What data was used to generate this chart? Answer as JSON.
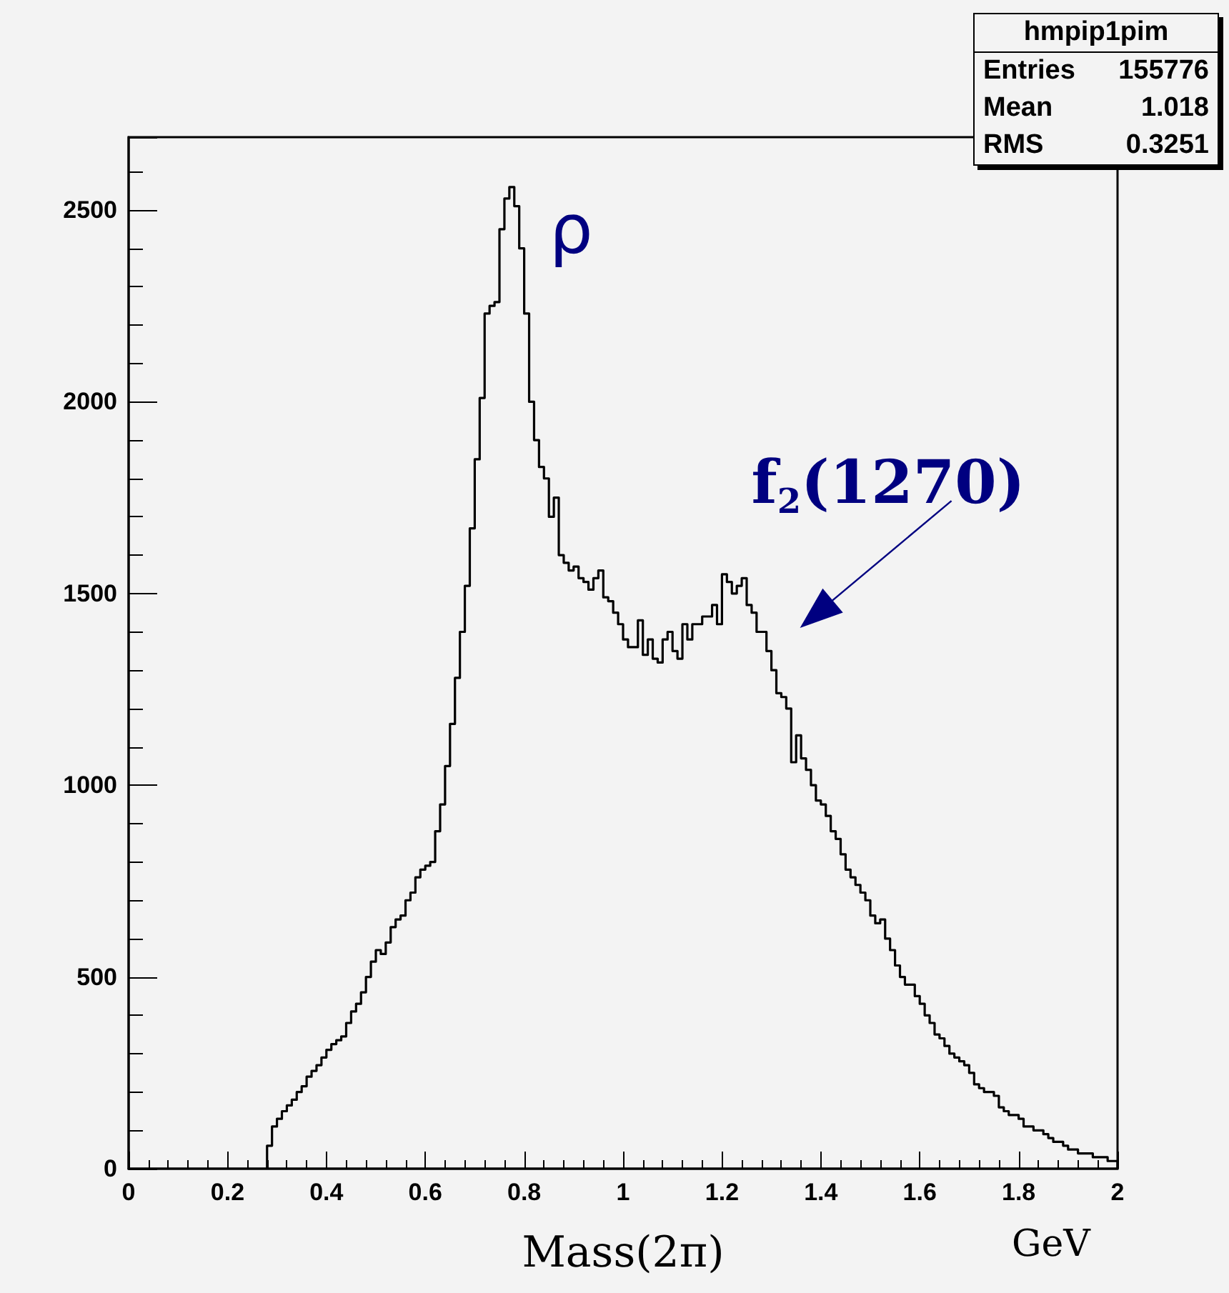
{
  "chart_data": {
    "type": "histogram",
    "xlabel": "Mass(2π)",
    "bins": [
      0.28,
      0.29,
      0.3,
      0.31,
      0.32,
      0.33,
      0.34,
      0.35,
      0.36,
      0.37,
      0.38,
      0.39,
      0.4,
      0.41,
      0.42,
      0.43,
      0.44,
      0.45,
      0.46,
      0.47,
      0.48,
      0.49,
      0.5,
      0.51,
      0.52,
      0.53,
      0.54,
      0.55,
      0.56,
      0.57,
      0.58,
      0.59,
      0.6,
      0.61,
      0.62,
      0.63,
      0.64,
      0.65,
      0.66,
      0.67,
      0.68,
      0.69,
      0.7,
      0.71,
      0.72,
      0.73,
      0.74,
      0.75,
      0.76,
      0.77,
      0.78,
      0.79,
      0.8,
      0.81,
      0.82,
      0.83,
      0.84,
      0.85,
      0.86,
      0.87,
      0.88,
      0.89,
      0.9,
      0.91,
      0.92,
      0.93,
      0.94,
      0.95,
      0.96,
      0.97,
      0.98,
      0.99,
      1.0,
      1.01,
      1.02,
      1.03,
      1.04,
      1.05,
      1.06,
      1.07,
      1.08,
      1.09,
      1.1,
      1.11,
      1.12,
      1.13,
      1.14,
      1.15,
      1.16,
      1.17,
      1.18,
      1.19,
      1.2,
      1.21,
      1.22,
      1.23,
      1.24,
      1.25,
      1.26,
      1.27,
      1.28,
      1.29,
      1.3,
      1.31,
      1.32,
      1.33,
      1.34,
      1.35,
      1.36,
      1.37,
      1.38,
      1.39,
      1.4,
      1.41,
      1.42,
      1.43,
      1.44,
      1.45,
      1.46,
      1.47,
      1.48,
      1.49,
      1.5,
      1.51,
      1.52,
      1.53,
      1.54,
      1.55,
      1.56,
      1.57,
      1.58,
      1.59,
      1.6,
      1.61,
      1.62,
      1.63,
      1.64,
      1.65,
      1.66,
      1.67,
      1.68,
      1.69,
      1.7,
      1.71,
      1.72,
      1.73,
      1.74,
      1.75,
      1.76,
      1.77,
      1.78,
      1.79,
      1.8,
      1.81,
      1.82,
      1.83,
      1.84,
      1.85,
      1.86,
      1.87,
      1.88,
      1.89,
      1.9,
      1.91,
      1.92,
      1.93,
      1.94,
      1.95,
      1.96,
      1.97,
      1.98,
      1.99,
      2.0
    ],
    "values": [
      60,
      110,
      130,
      150,
      165,
      180,
      200,
      215,
      240,
      255,
      270,
      290,
      310,
      325,
      335,
      345,
      380,
      410,
      430,
      460,
      500,
      540,
      570,
      560,
      590,
      630,
      650,
      660,
      700,
      720,
      760,
      780,
      790,
      800,
      880,
      950,
      1050,
      1160,
      1280,
      1400,
      1520,
      1670,
      1850,
      2010,
      2230,
      2250,
      2260,
      2450,
      2530,
      2560,
      2510,
      2400,
      2230,
      2000,
      1900,
      1830,
      1800,
      1700,
      1750,
      1600,
      1580,
      1560,
      1570,
      1540,
      1530,
      1510,
      1540,
      1560,
      1490,
      1480,
      1450,
      1420,
      1380,
      1360,
      1360,
      1430,
      1340,
      1380,
      1330,
      1320,
      1380,
      1400,
      1350,
      1330,
      1420,
      1380,
      1420,
      1420,
      1440,
      1440,
      1470,
      1420,
      1550,
      1530,
      1500,
      1520,
      1540,
      1470,
      1450,
      1400,
      1400,
      1350,
      1300,
      1240,
      1230,
      1200,
      1060,
      1130,
      1070,
      1040,
      1000,
      960,
      950,
      920,
      880,
      860,
      820,
      780,
      760,
      740,
      720,
      700,
      660,
      640,
      650,
      600,
      570,
      530,
      500,
      480,
      480,
      450,
      430,
      400,
      380,
      350,
      340,
      320,
      300,
      290,
      280,
      270,
      250,
      220,
      210,
      200,
      200,
      190,
      160,
      150,
      140,
      140,
      130,
      110,
      110,
      100,
      100,
      90,
      80,
      70,
      70,
      60,
      50,
      50,
      40,
      40,
      40,
      30,
      30,
      30,
      20,
      20
    ],
    "color": "#000000",
    "xlim": [
      0,
      2
    ],
    "xticks": [
      0,
      0.2,
      0.4,
      0.6,
      0.8,
      1,
      1.2,
      1.4,
      1.6,
      1.8,
      2
    ],
    "ylim": [
      0,
      2690
    ],
    "yticks": [
      0,
      500,
      1000,
      1500,
      2000,
      2500
    ],
    "grid": false,
    "annotations": [
      {
        "text": "ρ",
        "x": 0.77,
        "y": 2560
      },
      "f$_{2}$(1270)",
      "GeV",
      "hmpip1pim",
      "Entries 155776",
      "Mean 1.018",
      "RMS 0.3251"
    ]
  }
}
